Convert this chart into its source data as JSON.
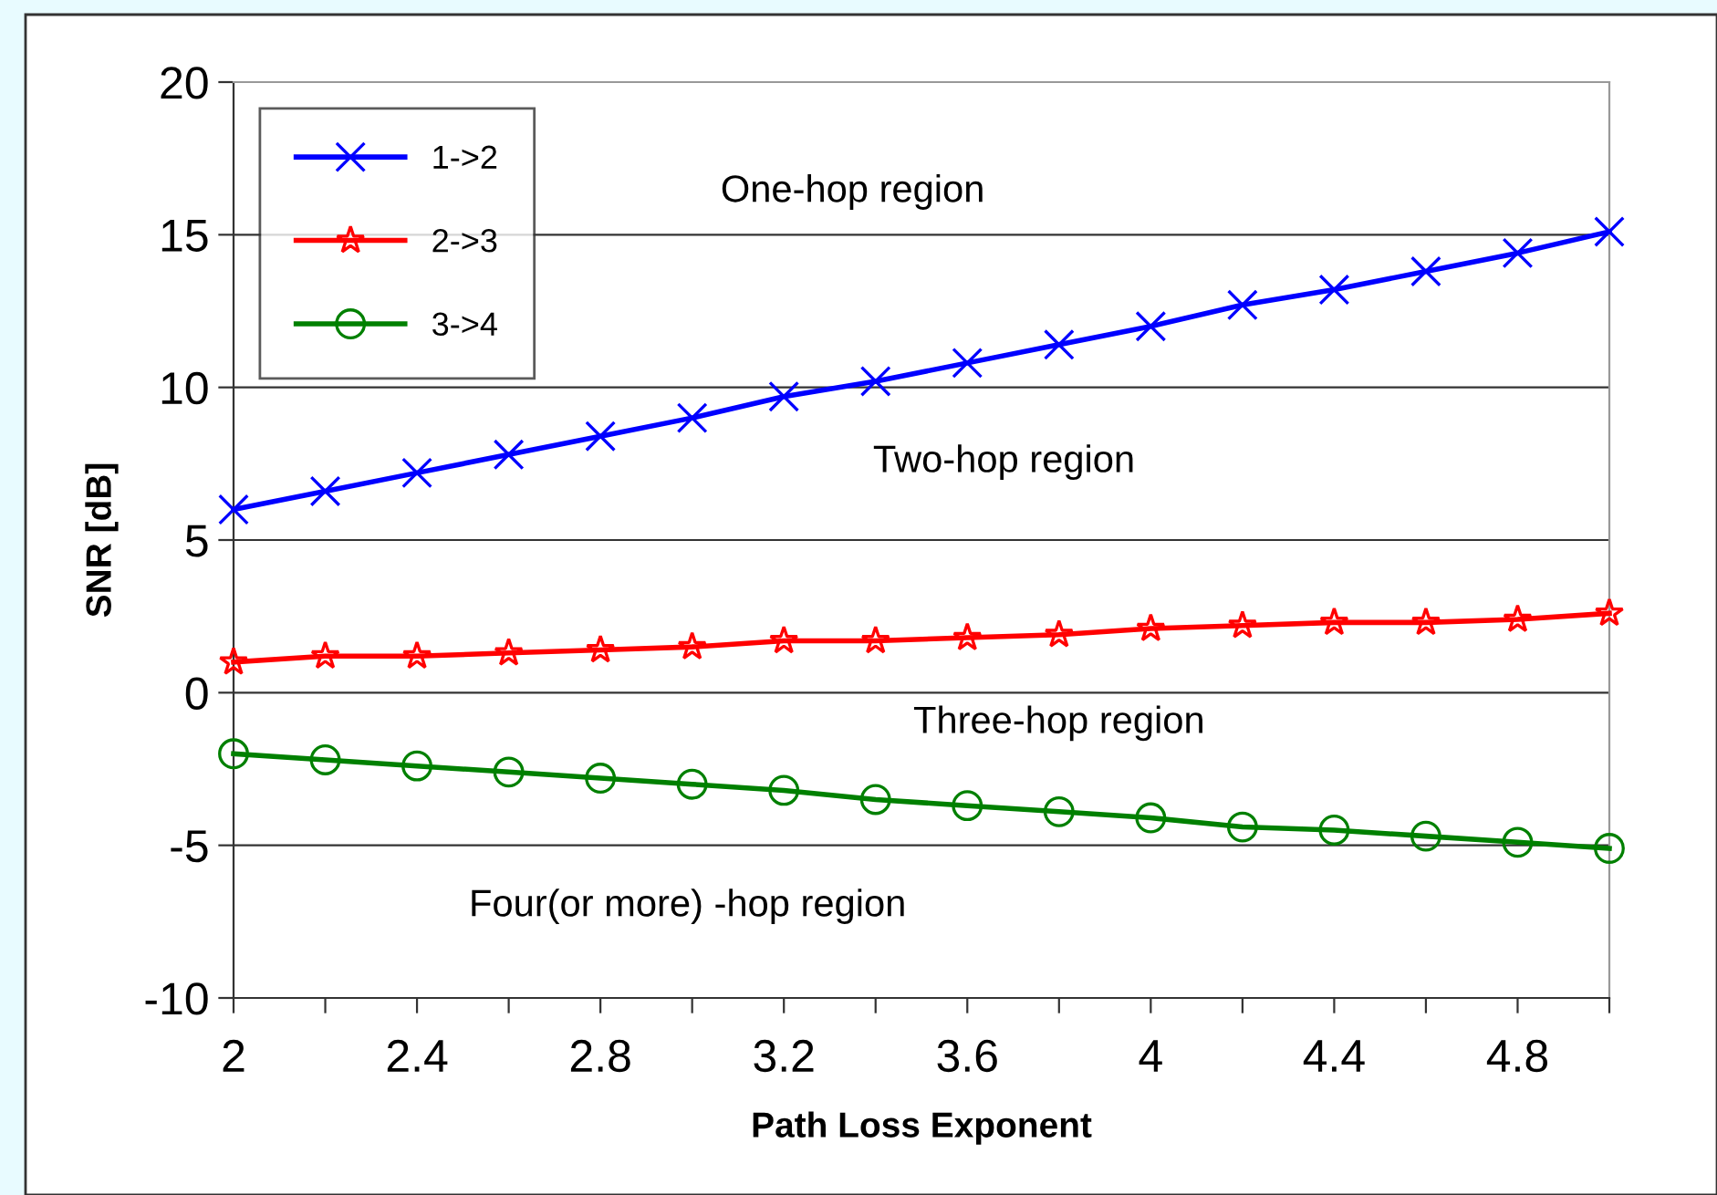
{
  "chart_data": {
    "type": "line",
    "xlabel": "Path Loss Exponent",
    "ylabel": "SNR [dB]",
    "x": [
      2,
      2.2,
      2.4,
      2.6,
      2.8,
      3,
      3.2,
      3.4,
      3.6,
      3.8,
      4,
      4.2,
      4.4,
      4.6,
      4.8,
      5
    ],
    "series": [
      {
        "name": "1->2",
        "color": "#0000ff",
        "marker": "cross",
        "values": [
          6.0,
          6.6,
          7.2,
          7.8,
          8.4,
          9.0,
          9.7,
          10.2,
          10.8,
          11.4,
          12.0,
          12.7,
          13.2,
          13.8,
          14.4,
          15.1
        ]
      },
      {
        "name": "2->3",
        "color": "#ff0000",
        "marker": "star",
        "values": [
          1.0,
          1.2,
          1.2,
          1.3,
          1.4,
          1.5,
          1.7,
          1.7,
          1.8,
          1.9,
          2.1,
          2.2,
          2.3,
          2.3,
          2.4,
          2.6
        ]
      },
      {
        "name": "3->4",
        "color": "#008000",
        "marker": "circle",
        "values": [
          -2.0,
          -2.2,
          -2.4,
          -2.6,
          -2.8,
          -3.0,
          -3.2,
          -3.5,
          -3.7,
          -3.9,
          -4.1,
          -4.4,
          -4.5,
          -4.7,
          -4.9,
          -5.1
        ]
      }
    ],
    "xlim": [
      2,
      5
    ],
    "xticks": [
      2,
      {
        "value": 2.2,
        "label": null
      },
      2.4,
      {
        "value": 2.6,
        "label": null
      },
      2.8,
      {
        "value": 3.0,
        "label": null
      },
      3.2,
      {
        "value": 3.4,
        "label": null
      },
      3.6,
      {
        "value": 3.8,
        "label": null
      },
      4,
      {
        "value": 4.2,
        "label": null
      },
      4.4,
      {
        "value": 4.6,
        "label": null
      },
      4.8,
      {
        "value": 5,
        "label": null
      }
    ],
    "ylim": [
      -10,
      20
    ],
    "yticks": [
      -10,
      -5,
      0,
      5,
      10,
      15,
      20
    ],
    "grid": "y",
    "legend": "top left",
    "annotations": [
      "One-hop region",
      "Two-hop region",
      "Three-hop region",
      "Four(or more) -hop region"
    ]
  }
}
